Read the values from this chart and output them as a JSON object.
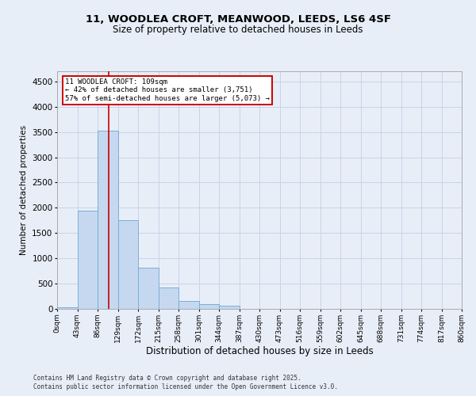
{
  "title_line1": "11, WOODLEA CROFT, MEANWOOD, LEEDS, LS6 4SF",
  "title_line2": "Size of property relative to detached houses in Leeds",
  "xlabel": "Distribution of detached houses by size in Leeds",
  "ylabel": "Number of detached properties",
  "bin_labels": [
    "0sqm",
    "43sqm",
    "86sqm",
    "129sqm",
    "172sqm",
    "215sqm",
    "258sqm",
    "301sqm",
    "344sqm",
    "387sqm",
    "430sqm",
    "473sqm",
    "516sqm",
    "559sqm",
    "602sqm",
    "645sqm",
    "688sqm",
    "731sqm",
    "774sqm",
    "817sqm",
    "860sqm"
  ],
  "bar_values": [
    30,
    1950,
    3520,
    1760,
    820,
    425,
    155,
    100,
    55,
    0,
    0,
    0,
    0,
    0,
    0,
    0,
    0,
    0,
    0,
    0
  ],
  "bar_color": "#c5d8f0",
  "bar_edge_color": "#7aafd4",
  "grid_color": "#c8d4e8",
  "background_color": "#e8eef8",
  "red_line_x": 2.535,
  "annotation_text": "11 WOODLEA CROFT: 109sqm\n← 42% of detached houses are smaller (3,751)\n57% of semi-detached houses are larger (5,073) →",
  "annotation_box_color": "#ffffff",
  "annotation_box_edge": "#cc0000",
  "ylim": [
    0,
    4700
  ],
  "yticks": [
    0,
    500,
    1000,
    1500,
    2000,
    2500,
    3000,
    3500,
    4000,
    4500
  ],
  "footer_line1": "Contains HM Land Registry data © Crown copyright and database right 2025.",
  "footer_line2": "Contains public sector information licensed under the Open Government Licence v3.0.",
  "red_line_color": "#cc0000",
  "figsize": [
    6.0,
    5.0
  ],
  "dpi": 100
}
